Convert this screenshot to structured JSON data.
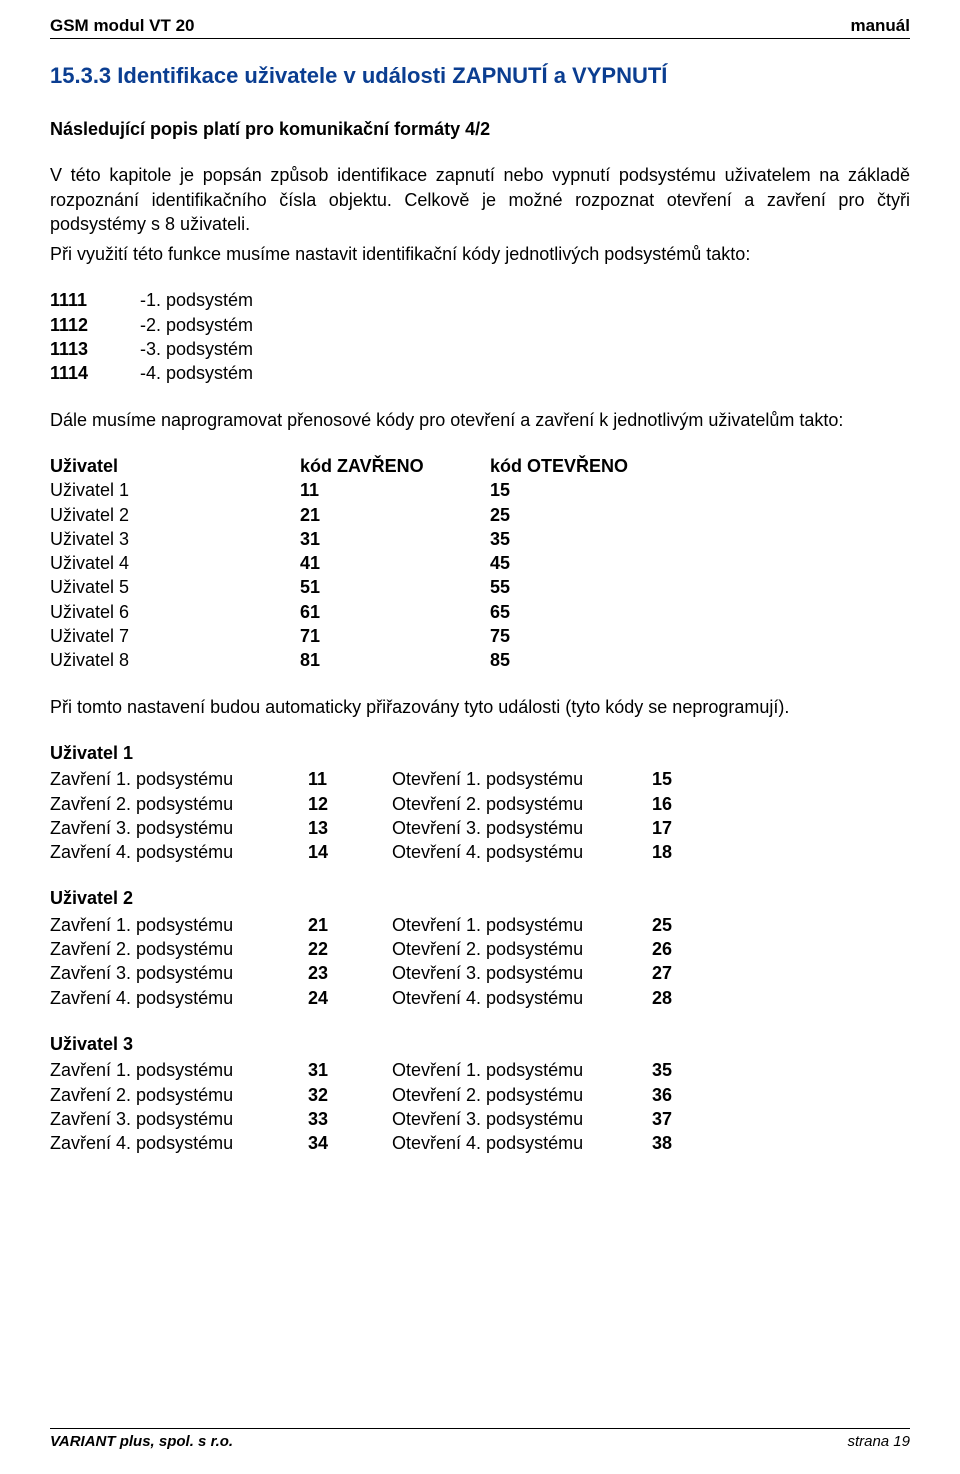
{
  "header": {
    "left": "GSM modul VT 20",
    "right": "manuál"
  },
  "title": "15.3.3  Identifikace uživatele v události ZAPNUTÍ a VYPNUTÍ",
  "intro_bold": "Následující popis platí pro komunikační formáty 4/2",
  "para1": "V této kapitole je popsán způsob identifikace zapnutí nebo vypnutí podsystému uživatelem na základě rozpoznání identifikačního čísla objektu. Celkově je možné rozpoznat otevření a zavření pro čtyři podsystémy s 8 uživateli.",
  "para2": "Při využití této funkce musíme nastavit identifikační kódy jednotlivých podsystémů takto:",
  "subsys": [
    {
      "code": "1111",
      "label": "-1. podsystém"
    },
    {
      "code": "1112",
      "label": "-2. podsystém"
    },
    {
      "code": "1113",
      "label": "-3. podsystém"
    },
    {
      "code": "1114",
      "label": "-4. podsystém"
    }
  ],
  "para3": "Dále musíme naprogramovat přenosové kódy pro otevření a zavření k jednotlivým uživatelům takto:",
  "codes_header": {
    "user": "Uživatel",
    "closed": "kód ZAVŘENO",
    "opened": "kód OTEVŘENO"
  },
  "codes_rows": [
    {
      "user": "Uživatel 1",
      "closed": "11",
      "opened": "15"
    },
    {
      "user": "Uživatel 2",
      "closed": "21",
      "opened": "25"
    },
    {
      "user": "Uživatel 3",
      "closed": "31",
      "opened": "35"
    },
    {
      "user": "Uživatel 4",
      "closed": "41",
      "opened": "45"
    },
    {
      "user": "Uživatel 5",
      "closed": "51",
      "opened": "55"
    },
    {
      "user": "Uživatel 6",
      "closed": "61",
      "opened": "65"
    },
    {
      "user": "Uživatel 7",
      "closed": "71",
      "opened": "75"
    },
    {
      "user": "Uživatel 8",
      "closed": "81",
      "opened": "85"
    }
  ],
  "para4": "Při tomto nastavení budou automaticky přiřazovány tyto události (tyto kódy se neprogramují).",
  "user_blocks": [
    {
      "title": "Uživatel 1",
      "rows": [
        {
          "za": "Zavření 1. podsystému",
          "zc": "11",
          "oa": "Otevření 1. podsystému",
          "oc": "15"
        },
        {
          "za": "Zavření 2. podsystému",
          "zc": "12",
          "oa": "Otevření 2. podsystému",
          "oc": "16"
        },
        {
          "za": "Zavření 3. podsystému",
          "zc": "13",
          "oa": "Otevření 3. podsystému",
          "oc": "17"
        },
        {
          "za": "Zavření 4. podsystému",
          "zc": "14",
          "oa": "Otevření 4. podsystému",
          "oc": "18"
        }
      ]
    },
    {
      "title": "Uživatel 2",
      "rows": [
        {
          "za": "Zavření 1. podsystému",
          "zc": "21",
          "oa": "Otevření 1. podsystému",
          "oc": "25"
        },
        {
          "za": "Zavření 2. podsystému",
          "zc": "22",
          "oa": "Otevření 2. podsystému",
          "oc": "26"
        },
        {
          "za": "Zavření 3. podsystému",
          "zc": "23",
          "oa": "Otevření 3. podsystému",
          "oc": "27"
        },
        {
          "za": "Zavření 4. podsystému",
          "zc": "24",
          "oa": "Otevření 4. podsystému",
          "oc": "28"
        }
      ]
    },
    {
      "title": "Uživatel 3",
      "rows": [
        {
          "za": "Zavření 1. podsystému",
          "zc": "31",
          "oa": "Otevření 1. podsystému",
          "oc": "35"
        },
        {
          "za": "Zavření 2. podsystému",
          "zc": "32",
          "oa": "Otevření 2. podsystému",
          "oc": "36"
        },
        {
          "za": "Zavření 3. podsystému",
          "zc": "33",
          "oa": "Otevření 3. podsystému",
          "oc": "37"
        },
        {
          "za": "Zavření 4. podsystému",
          "zc": "34",
          "oa": "Otevření 4. podsystému",
          "oc": "38"
        }
      ]
    }
  ],
  "footer": {
    "left": "VARIANT plus, spol. s r.o.",
    "right": "strana 19"
  }
}
